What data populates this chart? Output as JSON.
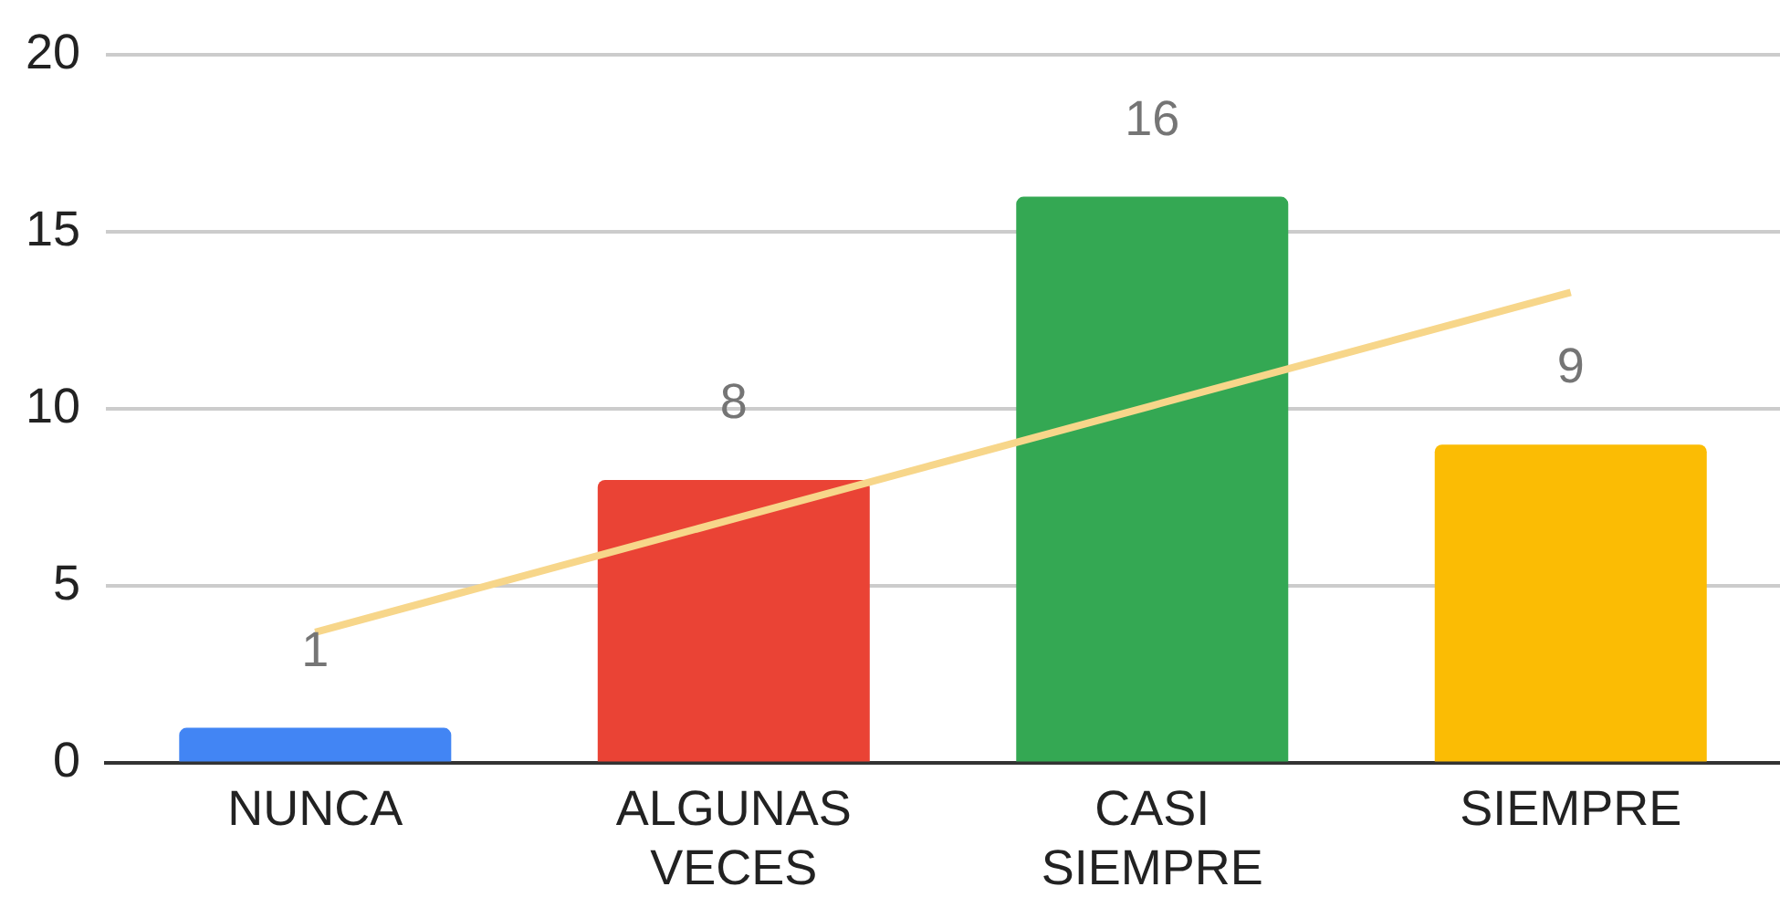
{
  "chart_data": {
    "type": "bar",
    "categories": [
      "NUNCA",
      "ALGUNAS VECES",
      "CASI SIEMPRE",
      "SIEMPRE"
    ],
    "series": [
      {
        "colors": [
          "#4285f4",
          "#ea4335",
          "#34a853",
          "#fbbc04"
        ],
        "values": [
          1,
          8,
          16,
          9
        ],
        "value_labels": [
          "1",
          "8",
          "16",
          "9"
        ]
      },
      {
        "type": "line",
        "color": "#f7d68a",
        "values": [
          3.7,
          6.9,
          10.1,
          13.3
        ]
      }
    ],
    "ylim": [
      0,
      20
    ],
    "yticks": [
      0,
      5,
      10,
      15,
      20
    ],
    "grid": "y",
    "legend": false,
    "marker": "none"
  }
}
